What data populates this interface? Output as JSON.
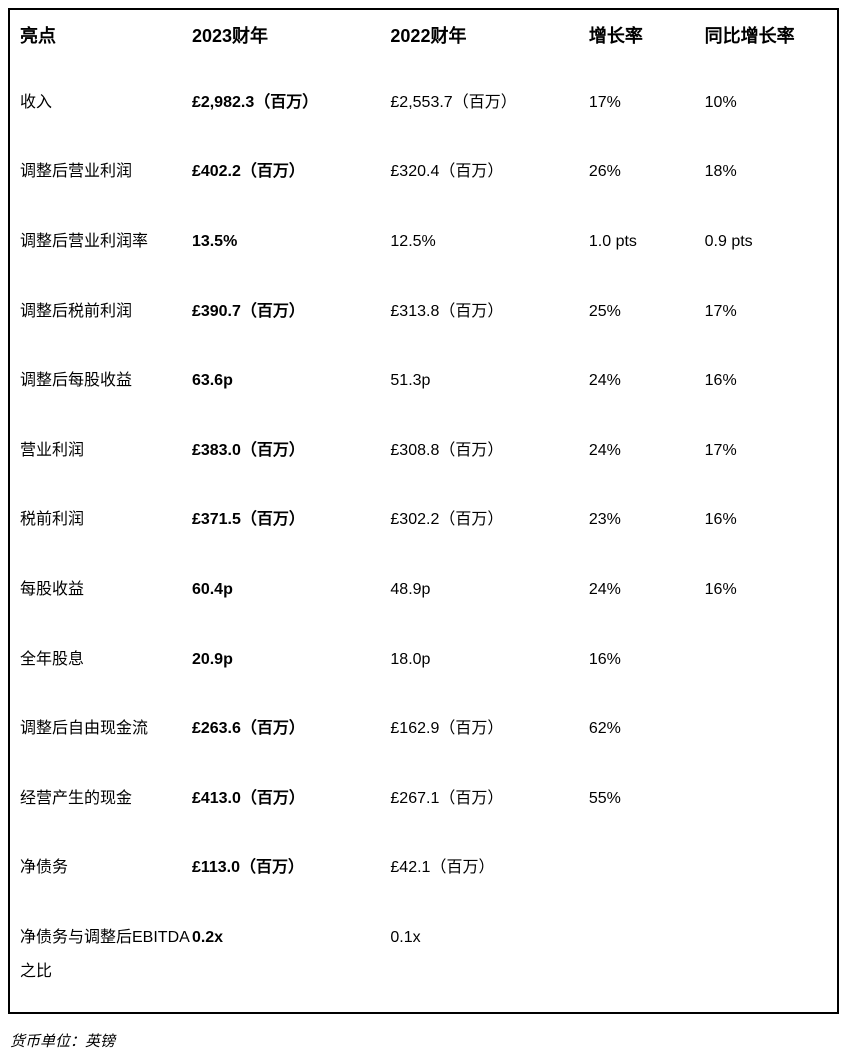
{
  "table": {
    "columns": [
      "亮点",
      "2023财年",
      "2022财年",
      "增长率",
      "同比增长率"
    ],
    "rows": [
      [
        "收入",
        "£2,982.3（百万）",
        "£2,553.7（百万）",
        "17%",
        "10%"
      ],
      [
        "调整后营业利润",
        "£402.2（百万）",
        "£320.4（百万）",
        "26%",
        "18%"
      ],
      [
        "调整后营业利润率",
        "13.5%",
        "12.5%",
        "1.0 pts",
        "0.9 pts"
      ],
      [
        "调整后税前利润",
        "£390.7（百万）",
        "£313.8（百万）",
        "25%",
        "17%"
      ],
      [
        "调整后每股收益",
        "63.6p",
        "51.3p",
        "24%",
        "16%"
      ],
      [
        "营业利润",
        "£383.0（百万）",
        "£308.8（百万）",
        "24%",
        "17%"
      ],
      [
        "税前利润",
        "£371.5（百万）",
        "£302.2（百万）",
        "23%",
        "16%"
      ],
      [
        "每股收益",
        "60.4p",
        "48.9p",
        "24%",
        "16%"
      ],
      [
        "全年股息",
        "20.9p",
        "18.0p",
        "16%",
        ""
      ],
      [
        "调整后自由现金流",
        "£263.6（百万）",
        "£162.9（百万）",
        "62%",
        ""
      ],
      [
        "经营产生的现金",
        "£413.0（百万）",
        "£267.1（百万）",
        "55%",
        ""
      ],
      [
        "净债务",
        "£113.0（百万）",
        "£42.1（百万）",
        "",
        ""
      ],
      [
        "净债务与调整后EBITDA之比",
        "0.2x",
        "0.1x",
        "",
        ""
      ]
    ],
    "col_widths": [
      "22%",
      "24%",
      "24%",
      "14%",
      "16%"
    ],
    "border_color": "#000000",
    "background_color": "#ffffff",
    "header_fontsize": 18,
    "body_fontsize": 16
  },
  "footnote": "货币单位：英镑"
}
